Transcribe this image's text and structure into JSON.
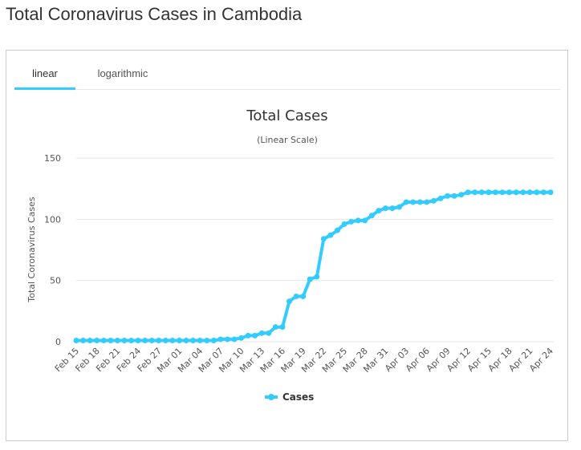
{
  "page": {
    "title": "Total Coronavirus Cases in Cambodia"
  },
  "tabs": [
    {
      "label": "linear",
      "active": true
    },
    {
      "label": "logarithmic",
      "active": false
    }
  ],
  "colors": {
    "series": "#33ccff",
    "tab_underline": "#33ccff",
    "grid": "#e6e6e6"
  },
  "chart_data": {
    "type": "line",
    "title": "Total Cases",
    "subtitle": "(Linear Scale)",
    "ylabel": "Total Coronavirus Cases",
    "xlabel": "",
    "ylim": [
      0,
      150
    ],
    "yticks": [
      0,
      50,
      100,
      150
    ],
    "grid": true,
    "legend_position": "bottom",
    "x": [
      "Feb 15",
      "Feb 16",
      "Feb 17",
      "Feb 18",
      "Feb 19",
      "Feb 20",
      "Feb 21",
      "Feb 22",
      "Feb 23",
      "Feb 24",
      "Feb 25",
      "Feb 26",
      "Feb 27",
      "Feb 28",
      "Feb 29",
      "Mar 01",
      "Mar 02",
      "Mar 03",
      "Mar 04",
      "Mar 05",
      "Mar 06",
      "Mar 07",
      "Mar 08",
      "Mar 09",
      "Mar 10",
      "Mar 11",
      "Mar 12",
      "Mar 13",
      "Mar 14",
      "Mar 15",
      "Mar 16",
      "Mar 17",
      "Mar 18",
      "Mar 19",
      "Mar 20",
      "Mar 21",
      "Mar 22",
      "Mar 23",
      "Mar 24",
      "Mar 25",
      "Mar 26",
      "Mar 27",
      "Mar 28",
      "Mar 29",
      "Mar 30",
      "Mar 31",
      "Apr 01",
      "Apr 02",
      "Apr 03",
      "Apr 04",
      "Apr 05",
      "Apr 06",
      "Apr 07",
      "Apr 08",
      "Apr 09",
      "Apr 10",
      "Apr 11",
      "Apr 12",
      "Apr 13",
      "Apr 14",
      "Apr 15",
      "Apr 16",
      "Apr 17",
      "Apr 18",
      "Apr 19",
      "Apr 20",
      "Apr 21",
      "Apr 22",
      "Apr 23",
      "Apr 24"
    ],
    "xtick_labels": [
      "Feb 15",
      "Feb 18",
      "Feb 21",
      "Feb 24",
      "Feb 27",
      "Mar 01",
      "Mar 04",
      "Mar 07",
      "Mar 10",
      "Mar 13",
      "Mar 16",
      "Mar 19",
      "Mar 22",
      "Mar 25",
      "Mar 28",
      "Mar 31",
      "Apr 03",
      "Apr 06",
      "Apr 09",
      "Apr 12",
      "Apr 15",
      "Apr 18",
      "Apr 21",
      "Apr 24"
    ],
    "series": [
      {
        "name": "Cases",
        "values": [
          1,
          1,
          1,
          1,
          1,
          1,
          1,
          1,
          1,
          1,
          1,
          1,
          1,
          1,
          1,
          1,
          1,
          1,
          1,
          1,
          1,
          2,
          2,
          2,
          3,
          5,
          5,
          7,
          7,
          12,
          12,
          33,
          37,
          37,
          51,
          53,
          84,
          87,
          91,
          96,
          98,
          99,
          99,
          103,
          107,
          109,
          109,
          110,
          114,
          114,
          114,
          114,
          115,
          117,
          119,
          119,
          120,
          122,
          122,
          122,
          122,
          122,
          122,
          122,
          122,
          122,
          122,
          122,
          122,
          122
        ]
      }
    ]
  }
}
